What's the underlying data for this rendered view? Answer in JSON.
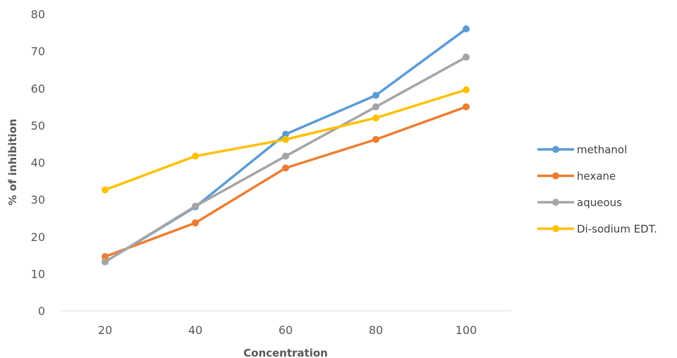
{
  "chart_data": {
    "type": "line",
    "title": "",
    "xlabel": "Concentration",
    "ylabel": "% of inhibition",
    "x": [
      20,
      40,
      60,
      80,
      100
    ],
    "ylim": [
      0,
      80
    ],
    "yticks": [
      0,
      10,
      20,
      30,
      40,
      50,
      60,
      70,
      80
    ],
    "grid": false,
    "legend_position": "right",
    "series": [
      {
        "name": "methanol",
        "color": "#5B9BD5",
        "values": [
          13.2,
          28.0,
          47.6,
          58.1,
          76.0
        ]
      },
      {
        "name": "hexane",
        "color": "#ED7D31",
        "values": [
          14.6,
          23.7,
          38.5,
          46.2,
          55.0
        ]
      },
      {
        "name": "aqueous",
        "color": "#A5A5A5",
        "values": [
          13.2,
          28.2,
          41.7,
          55.0,
          68.4
        ]
      },
      {
        "name": "Di-sodium EDT.",
        "color": "#FFC000",
        "values": [
          32.6,
          41.7,
          46.2,
          52.0,
          59.6
        ]
      }
    ]
  }
}
